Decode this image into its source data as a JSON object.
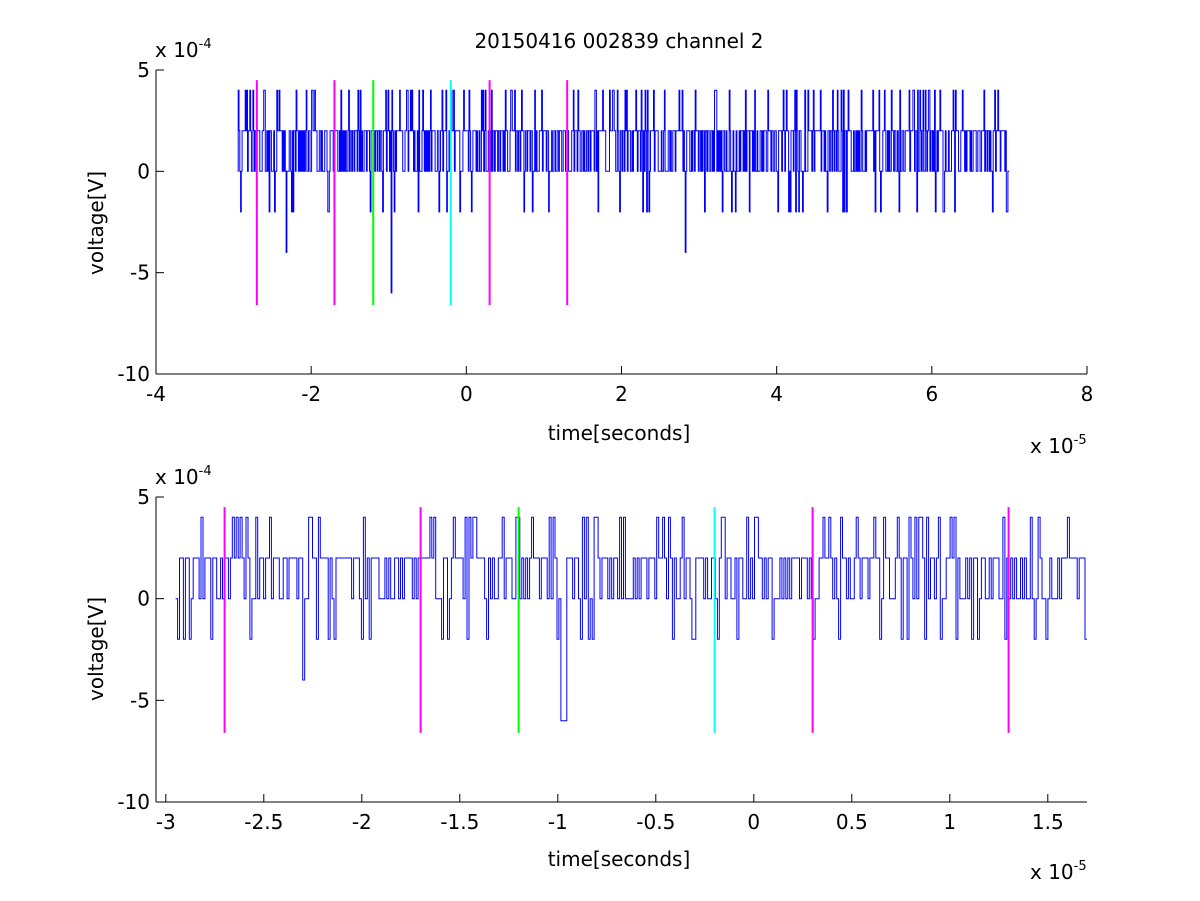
{
  "chart_data": [
    {
      "type": "line",
      "title": "20150416 002839 channel 2",
      "xlabel": "time[seconds]",
      "ylabel": "voltage[V]",
      "x_exponent_label": "x 10",
      "x_exponent": "-5",
      "y_exponent_label": "x 10",
      "y_exponent": "-4",
      "xlim": [
        -4,
        8
      ],
      "ylim": [
        -10,
        5
      ],
      "xticks": [
        -4,
        -2,
        0,
        2,
        4,
        6,
        8
      ],
      "xtick_labels": [
        "-4",
        "-2",
        "0",
        "2",
        "4",
        "6",
        "8"
      ],
      "yticks": [
        5,
        0,
        -5,
        -10
      ],
      "ytick_labels": [
        "5",
        "0",
        "-5",
        "-10"
      ],
      "grid": false,
      "series": [
        {
          "color": "#0000ff",
          "x": [
            -2.95,
            7.0
          ],
          "sample_count": 1000,
          "level_values": [
            -4,
            -2,
            0,
            2,
            4
          ],
          "seed": 73,
          "spikes": [
            {
              "x": -2.32,
              "y": -4
            },
            {
              "x": -0.97,
              "y": -6
            },
            {
              "x": 2.82,
              "y": -4
            }
          ]
        }
      ],
      "markers": [
        {
          "x": -2.7,
          "color": "#ff00ff",
          "ymin": -6.6,
          "ymax": 4.5
        },
        {
          "x": -1.7,
          "color": "#ff00ff",
          "ymin": -6.6,
          "ymax": 4.5
        },
        {
          "x": -1.2,
          "color": "#00ff00",
          "ymin": -6.6,
          "ymax": 4.5
        },
        {
          "x": -0.2,
          "color": "#00ffff",
          "ymin": -6.6,
          "ymax": 4.5
        },
        {
          "x": 0.3,
          "color": "#ff00ff",
          "ymin": -6.6,
          "ymax": 4.5
        },
        {
          "x": 1.3,
          "color": "#ff00ff",
          "ymin": -6.6,
          "ymax": 4.5
        }
      ]
    },
    {
      "type": "line",
      "title": "",
      "xlabel": "time[seconds]",
      "ylabel": "voltage[V]",
      "x_exponent_label": "x 10",
      "x_exponent": "-5",
      "y_exponent_label": "x 10",
      "y_exponent": "-4",
      "xlim": [
        -3.05,
        1.7
      ],
      "ylim": [
        -10,
        5
      ],
      "xticks": [
        -3,
        -2.5,
        -2,
        -1.5,
        -1,
        -0.5,
        0,
        0.5,
        1,
        1.5
      ],
      "xtick_labels": [
        "-3",
        "-2.5",
        "-2",
        "-1.5",
        "-1",
        "-0.5",
        "0",
        "0.5",
        "1",
        "1.5"
      ],
      "yticks": [
        5,
        0,
        -5,
        -10
      ],
      "ytick_labels": [
        "5",
        "0",
        "-5",
        "-10"
      ],
      "grid": false,
      "series": [
        {
          "color": "#0000ff",
          "x": [
            -2.95,
            1.7
          ],
          "sample_count": 466,
          "level_values": [
            -2,
            0,
            2,
            4
          ],
          "seed": 19,
          "spikes": [
            {
              "x": -2.3,
              "y": -4
            },
            {
              "x": -0.98,
              "y": -6
            },
            {
              "x": -0.97,
              "y": -6
            }
          ]
        }
      ],
      "markers": [
        {
          "x": -2.7,
          "color": "#ff00ff",
          "ymin": -6.6,
          "ymax": 4.5
        },
        {
          "x": -1.7,
          "color": "#ff00ff",
          "ymin": -6.6,
          "ymax": 4.5
        },
        {
          "x": -1.2,
          "color": "#00ff00",
          "ymin": -6.6,
          "ymax": 4.5
        },
        {
          "x": -0.2,
          "color": "#00ffff",
          "ymin": -6.6,
          "ymax": 4.5
        },
        {
          "x": 0.3,
          "color": "#ff00ff",
          "ymin": -6.6,
          "ymax": 4.5
        },
        {
          "x": 1.3,
          "color": "#ff00ff",
          "ymin": -6.6,
          "ymax": 4.5
        }
      ]
    }
  ]
}
